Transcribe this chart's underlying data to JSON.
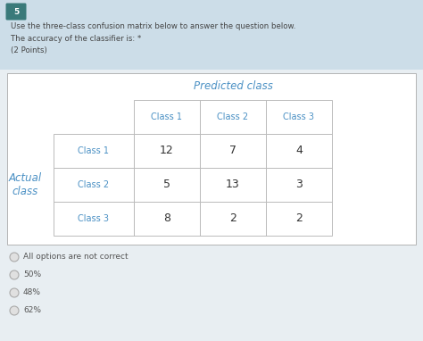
{
  "question_number": "5",
  "header_bg": "#ccdde8",
  "outer_bg": "#e8eef2",
  "table_bg": "#ffffff",
  "question_line1": "Use the three-class confusion matrix below to answer the question below.",
  "question_line2": "The accuracy of the classifier is: *",
  "question_line3": "(2 Points)",
  "predicted_label": "Predicted class",
  "actual_label": "Actual\nclass",
  "col_headers": [
    "Class 1",
    "Class 2",
    "Class 3"
  ],
  "row_headers": [
    "Class 1",
    "Class 2",
    "Class 3"
  ],
  "matrix": [
    [
      12,
      7,
      4
    ],
    [
      5,
      13,
      3
    ],
    [
      8,
      2,
      2
    ]
  ],
  "options": [
    "All options are not correct",
    "50%",
    "48%",
    "62%"
  ],
  "header_color": "#4a90c4",
  "text_color": "#444444",
  "option_text_color": "#555555",
  "table_text_color": "#4a90c4",
  "matrix_text_color": "#333333",
  "number_bg": "#3a7a7a",
  "number_text_color": "#ffffff",
  "cell_border": "#bbbbbb",
  "table_outer_border": "#aaaaaa"
}
